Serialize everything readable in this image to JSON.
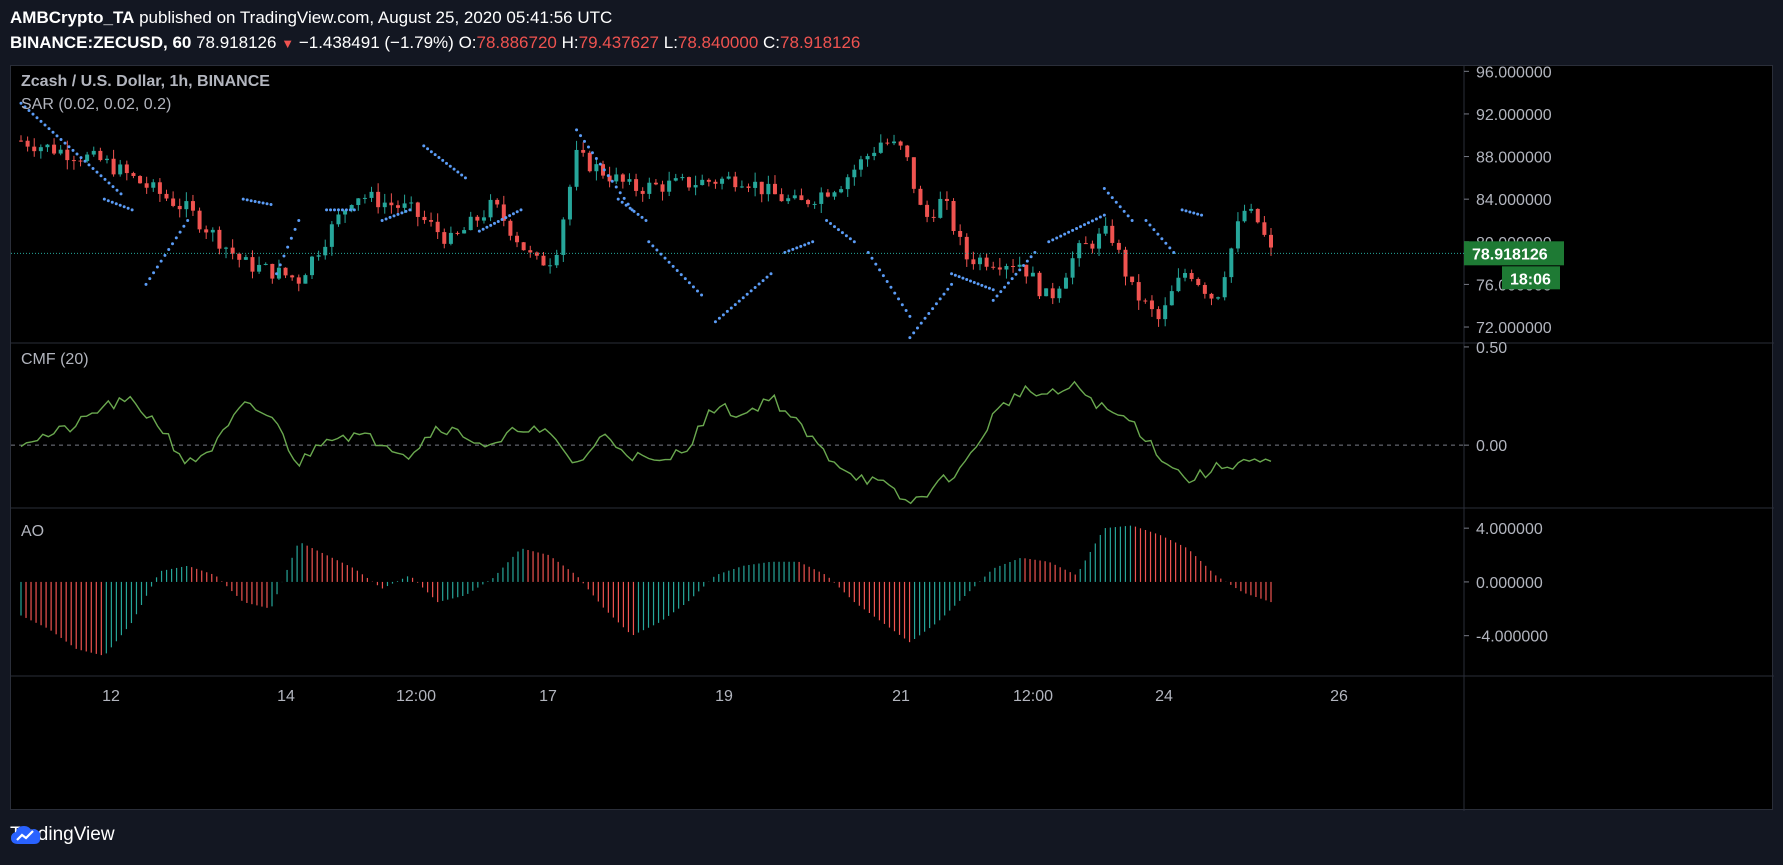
{
  "header": {
    "author": "AMBCrypto_TA",
    "published_text": "published on TradingView.com, August 25, 2020 05:41:56 UTC",
    "symbol": "BINANCE:ZECUSD, 60",
    "last": "78.918126",
    "change": "−1.438491 (−1.79%)",
    "o_label": "O:",
    "o_value": "78.886720",
    "h_label": "H:",
    "h_value": "79.437627",
    "l_label": "L:",
    "l_value": "78.840000",
    "c_label": "C:",
    "c_value": "78.918126"
  },
  "colors": {
    "background": "#000000",
    "up": "#26a69a",
    "down": "#ef5350",
    "sar": "#5b9cf6",
    "cmf": "#6aa84f",
    "price_tag": "#1e7a34",
    "axis_text": "#b2b5be"
  },
  "footer": {
    "brand": "TradingView",
    "logo_icon": "tradingview-cloud-icon"
  },
  "chart_data": [
    {
      "type": "candlestick",
      "pane": "price",
      "title": "Zcash / U.S. Dollar, 1h, BINANCE",
      "indicator": "SAR (0.02, 0.02, 0.2)",
      "ylim": [
        70.5,
        96.5
      ],
      "yticks": [
        "96.000000",
        "92.000000",
        "88.000000",
        "84.000000",
        "80.000000",
        "76.000000",
        "72.000000"
      ],
      "last_price": "78.918126",
      "countdown": "18:06",
      "x_ticks": [
        "12",
        "14",
        "12:00",
        "17",
        "19",
        "21",
        "12:00",
        "24",
        "26"
      ],
      "x": [
        0,
        3,
        6,
        8,
        10,
        12,
        14,
        15.5,
        17,
        18.5,
        19.2,
        20,
        22,
        24,
        26,
        27,
        28,
        29.5,
        31,
        31.8,
        32.5,
        33.2,
        34,
        36,
        37,
        38,
        38.6,
        39.2,
        40,
        41,
        41.5,
        42,
        43,
        44,
        44.5,
        45
      ],
      "close": [
        89.5,
        87.5,
        83,
        78,
        76.5,
        84.5,
        83,
        80,
        83.5,
        78,
        78.5,
        88,
        85,
        85.5,
        86,
        84.5,
        83.5,
        85.5,
        89.5,
        88.5,
        82,
        84,
        78.5,
        78,
        74.5,
        79,
        80,
        81,
        75.5,
        72.5,
        75.5,
        77.5,
        74.5,
        83,
        82,
        79
      ],
      "sar_segments": [
        {
          "x": [
            0,
            3.6
          ],
          "y": [
            93,
            84.5
          ]
        },
        {
          "x": [
            3,
            4
          ],
          "y": [
            84,
            83
          ]
        },
        {
          "x": [
            4.5,
            6
          ],
          "y": [
            76,
            82
          ]
        },
        {
          "x": [
            8,
            9
          ],
          "y": [
            84,
            83.5
          ]
        },
        {
          "x": [
            9.2,
            10
          ],
          "y": [
            77,
            82
          ]
        },
        {
          "x": [
            11,
            12
          ],
          "y": [
            83,
            83
          ]
        },
        {
          "x": [
            13,
            14
          ],
          "y": [
            82,
            83
          ]
        },
        {
          "x": [
            14.5,
            16
          ],
          "y": [
            89,
            86
          ]
        },
        {
          "x": [
            16.5,
            18
          ],
          "y": [
            81,
            83
          ]
        },
        {
          "x": [
            20,
            22
          ],
          "y": [
            90.5,
            83
          ]
        },
        {
          "x": [
            21.5,
            22.5
          ],
          "y": [
            84,
            82
          ]
        },
        {
          "x": [
            22.6,
            24.5
          ],
          "y": [
            80,
            75
          ]
        },
        {
          "x": [
            25,
            27
          ],
          "y": [
            72.5,
            77
          ]
        },
        {
          "x": [
            27.5,
            28.5
          ],
          "y": [
            79,
            80
          ]
        },
        {
          "x": [
            29,
            30
          ],
          "y": [
            82,
            80
          ]
        },
        {
          "x": [
            30.5,
            32
          ],
          "y": [
            79,
            73
          ]
        },
        {
          "x": [
            32,
            33.5
          ],
          "y": [
            71,
            76
          ]
        },
        {
          "x": [
            33.5,
            35
          ],
          "y": [
            77,
            75.5
          ]
        },
        {
          "x": [
            35,
            36.5
          ],
          "y": [
            74.5,
            79
          ]
        },
        {
          "x": [
            37,
            39
          ],
          "y": [
            80,
            82.5
          ]
        },
        {
          "x": [
            39,
            40
          ],
          "y": [
            85,
            82
          ]
        },
        {
          "x": [
            40.5,
            41.5
          ],
          "y": [
            82,
            79
          ]
        },
        {
          "x": [
            41.8,
            42.5
          ],
          "y": [
            83,
            82.5
          ]
        }
      ]
    },
    {
      "type": "line",
      "pane": "cmf",
      "title": "CMF (20)",
      "ylim": [
        -0.32,
        0.52
      ],
      "yticks": [
        "0.50",
        "0.00"
      ],
      "x": [
        0,
        1,
        2,
        3,
        4,
        5,
        6,
        7,
        8,
        9,
        10,
        11,
        12,
        13,
        14,
        15,
        16,
        17,
        18,
        19,
        20,
        21,
        22,
        23,
        24,
        25,
        26,
        27,
        28,
        29,
        30,
        31,
        32,
        33,
        34,
        35,
        36,
        37,
        38,
        39,
        40,
        41,
        42,
        43,
        44,
        45
      ],
      "values": [
        0.02,
        0.05,
        0.1,
        0.2,
        0.22,
        0.1,
        -0.1,
        0.0,
        0.2,
        0.15,
        -0.1,
        0.05,
        0.05,
        0.02,
        -0.05,
        0.1,
        0.05,
        -0.02,
        0.1,
        0.05,
        -0.1,
        0.05,
        -0.05,
        -0.1,
        0.0,
        0.2,
        0.15,
        0.25,
        0.1,
        -0.05,
        -0.15,
        -0.2,
        -0.3,
        -0.2,
        -0.1,
        0.15,
        0.28,
        0.25,
        0.3,
        0.18,
        0.12,
        -0.05,
        -0.18,
        -0.12,
        -0.08,
        -0.1
      ]
    },
    {
      "type": "bar",
      "pane": "ao",
      "title": "AO",
      "ylim": [
        -7,
        5.5
      ],
      "yticks": [
        "4.000000",
        "0.000000",
        "-4.000000"
      ],
      "x": [
        0,
        1,
        2,
        3,
        4,
        5,
        6,
        7,
        8,
        9,
        10,
        11,
        12,
        13,
        14,
        15,
        16,
        17,
        18,
        19,
        20,
        21,
        22,
        23,
        24,
        25,
        26,
        27,
        28,
        29,
        30,
        31,
        32,
        33,
        34,
        35,
        36,
        37,
        38,
        39,
        40,
        41,
        42,
        43,
        44,
        45
      ],
      "values": [
        -2.5,
        -3.5,
        -5,
        -5.5,
        -3,
        0.8,
        1.2,
        0.5,
        -1.5,
        -2,
        3,
        2,
        1,
        -0.5,
        0.5,
        -1.5,
        -1,
        0.3,
        2.5,
        2,
        0.5,
        -2,
        -4,
        -3,
        -1.5,
        0.5,
        1.2,
        1.5,
        1.5,
        0.5,
        -1.5,
        -3,
        -4.5,
        -3,
        -1,
        1,
        1.8,
        1.5,
        0.5,
        4,
        4.2,
        3.5,
        2.5,
        0.5,
        -0.8,
        -1.5
      ],
      "colors_up": "#26a69a",
      "colors_down": "#ef5350"
    }
  ]
}
